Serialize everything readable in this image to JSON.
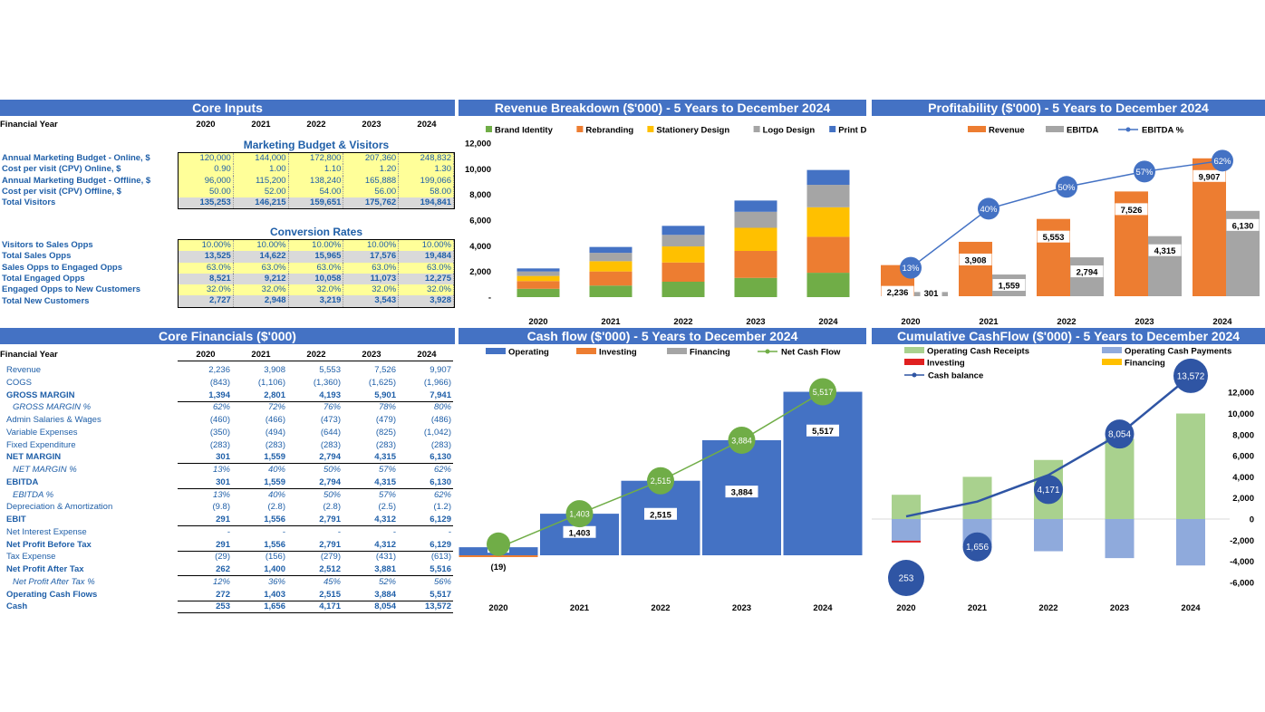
{
  "core_inputs": {
    "title": "Core Inputs",
    "year_label": "Financial Year",
    "years": [
      "2020",
      "2021",
      "2022",
      "2023",
      "2024"
    ],
    "section1_title": "Marketing Budget & Visitors",
    "section1_rows": [
      {
        "label": "Annual Marketing Budget - Online, $",
        "values": [
          "120,000",
          "144,000",
          "172,800",
          "207,360",
          "248,832"
        ],
        "style": "hl"
      },
      {
        "label": "Cost per visit (CPV) Online, $",
        "values": [
          "0.90",
          "1.00",
          "1.10",
          "1.20",
          "1.30"
        ],
        "style": "hl"
      },
      {
        "label": "Annual Marketing Budget - Offline, $",
        "values": [
          "96,000",
          "115,200",
          "138,240",
          "165,888",
          "199,066"
        ],
        "style": "hl"
      },
      {
        "label": "Cost per visit (CPV) Offline, $",
        "values": [
          "50.00",
          "52.00",
          "54.00",
          "56.00",
          "58.00"
        ],
        "style": "hl"
      },
      {
        "label": "Total Visitors",
        "values": [
          "135,253",
          "146,215",
          "159,651",
          "175,762",
          "194,841"
        ],
        "style": "gr"
      }
    ],
    "section2_title": "Conversion Rates",
    "section2_rows": [
      {
        "label": "Visitors to Sales Opps",
        "values": [
          "10.00%",
          "10.00%",
          "10.00%",
          "10.00%",
          "10.00%"
        ],
        "style": "hl"
      },
      {
        "label": "Total Sales Opps",
        "values": [
          "13,525",
          "14,622",
          "15,965",
          "17,576",
          "19,484"
        ],
        "style": "gr"
      },
      {
        "label": "Sales Opps to Engaged Opps",
        "values": [
          "63.0%",
          "63.0%",
          "63.0%",
          "63.0%",
          "63.0%"
        ],
        "style": "hl"
      },
      {
        "label": "Total Engaged Opps",
        "values": [
          "8,521",
          "9,212",
          "10,058",
          "11,073",
          "12,275"
        ],
        "style": "gr"
      },
      {
        "label": "Engaged Opps to New Customers",
        "values": [
          "32.0%",
          "32.0%",
          "32.0%",
          "32.0%",
          "32.0%"
        ],
        "style": "hl"
      },
      {
        "label": "Total New Customers",
        "values": [
          "2,727",
          "2,948",
          "3,219",
          "3,543",
          "3,928"
        ],
        "style": "gr"
      }
    ]
  },
  "core_financials": {
    "title": "Core Financials ($'000)",
    "year_label": "Financial Year",
    "years": [
      "2020",
      "2021",
      "2022",
      "2023",
      "2024"
    ],
    "rows": [
      {
        "label": "Revenue",
        "values": [
          "2,236",
          "3,908",
          "5,553",
          "7,526",
          "9,907"
        ],
        "style": "normal"
      },
      {
        "label": "COGS",
        "values": [
          "(843)",
          "(1,106)",
          "(1,360)",
          "(1,625)",
          "(1,966)"
        ],
        "style": "normal"
      },
      {
        "label": "GROSS MARGIN",
        "values": [
          "1,394",
          "2,801",
          "4,193",
          "5,901",
          "7,941"
        ],
        "style": "bold"
      },
      {
        "label": "GROSS MARGIN %",
        "values": [
          "62%",
          "72%",
          "76%",
          "78%",
          "80%"
        ],
        "style": "italic"
      },
      {
        "label": "Admin Salaries & Wages",
        "values": [
          "(460)",
          "(466)",
          "(473)",
          "(479)",
          "(486)"
        ],
        "style": "normal"
      },
      {
        "label": "Variable Expenses",
        "values": [
          "(350)",
          "(494)",
          "(644)",
          "(825)",
          "(1,042)"
        ],
        "style": "normal"
      },
      {
        "label": "Fixed Expenditure",
        "values": [
          "(283)",
          "(283)",
          "(283)",
          "(283)",
          "(283)"
        ],
        "style": "normal"
      },
      {
        "label": "NET MARGIN",
        "values": [
          "301",
          "1,559",
          "2,794",
          "4,315",
          "6,130"
        ],
        "style": "bold"
      },
      {
        "label": "NET MARGIN %",
        "values": [
          "13%",
          "40%",
          "50%",
          "57%",
          "62%"
        ],
        "style": "italic"
      },
      {
        "label": "EBITDA",
        "values": [
          "301",
          "1,559",
          "2,794",
          "4,315",
          "6,130"
        ],
        "style": "bold"
      },
      {
        "label": "EBITDA %",
        "values": [
          "13%",
          "40%",
          "50%",
          "57%",
          "62%"
        ],
        "style": "italic"
      },
      {
        "label": "Depreciation & Amortization",
        "values": [
          "(9.8)",
          "(2.8)",
          "(2.8)",
          "(2.5)",
          "(1.2)"
        ],
        "style": "normal"
      },
      {
        "label": "EBIT",
        "values": [
          "291",
          "1,556",
          "2,791",
          "4,312",
          "6,129"
        ],
        "style": "bold"
      },
      {
        "label": "Net Interest Expense",
        "values": [
          "-",
          "-",
          "-",
          "-",
          "-"
        ],
        "style": "normal"
      },
      {
        "label": "Net Profit Before Tax",
        "values": [
          "291",
          "1,556",
          "2,791",
          "4,312",
          "6,129"
        ],
        "style": "bold"
      },
      {
        "label": "Tax Expense",
        "values": [
          "(29)",
          "(156)",
          "(279)",
          "(431)",
          "(613)"
        ],
        "style": "normal"
      },
      {
        "label": "Net Profit After Tax",
        "values": [
          "262",
          "1,400",
          "2,512",
          "3,881",
          "5,516"
        ],
        "style": "bold"
      },
      {
        "label": "Net Profit After Tax %",
        "values": [
          "12%",
          "36%",
          "45%",
          "52%",
          "56%"
        ],
        "style": "italic"
      },
      {
        "label": "Operating Cash Flows",
        "values": [
          "272",
          "1,403",
          "2,515",
          "3,884",
          "5,517"
        ],
        "style": "bold"
      },
      {
        "label": "Cash",
        "values": [
          "253",
          "1,656",
          "4,171",
          "8,054",
          "13,572"
        ],
        "style": "bold"
      }
    ]
  },
  "charts": {
    "revenue": {
      "title": "Revenue Breakdown ($'000) - 5 Years to December 2024"
    },
    "profit": {
      "title": "Profitability ($'000) - 5 Years to December 2024"
    },
    "cashflow": {
      "title": "Cash flow ($'000) - 5 Years to December 2024"
    },
    "cumulative": {
      "title": "Cumulative CashFlow ($'000) - 5 Years to December 2024"
    }
  },
  "chart_data": [
    {
      "type": "bar",
      "title": "Revenue Breakdown ($'000) - 5 Years to December 2024",
      "categories": [
        "2020",
        "2021",
        "2022",
        "2023",
        "2024"
      ],
      "stacked": true,
      "ylim": [
        0,
        12000
      ],
      "yticks": [
        "-",
        "2,000",
        "4,000",
        "6,000",
        "8,000",
        "10,000",
        "12,000"
      ],
      "legend": "top",
      "series": [
        {
          "name": "Brand Identity",
          "color": "#70ad47",
          "values": [
            650,
            900,
            1200,
            1500,
            1900
          ]
        },
        {
          "name": "Rebranding",
          "color": "#ed7d31",
          "values": [
            600,
            1100,
            1500,
            2100,
            2800
          ]
        },
        {
          "name": "Stationery Design",
          "color": "#ffc000",
          "values": [
            400,
            800,
            1250,
            1800,
            2300
          ]
        },
        {
          "name": "Logo Design",
          "color": "#a5a5a5",
          "values": [
            350,
            650,
            900,
            1250,
            1750
          ]
        },
        {
          "name": "Print Design",
          "color": "#4472c4",
          "values": [
            236,
            458,
            703,
            876,
            1157
          ]
        }
      ]
    },
    {
      "type": "bar",
      "title": "Profitability ($'000) - 5 Years to December 2024",
      "categories": [
        "2020",
        "2021",
        "2022",
        "2023",
        "2024"
      ],
      "legend": "top",
      "ylim": [
        0,
        11000
      ],
      "series": [
        {
          "name": "Revenue",
          "color": "#ed7d31",
          "values": [
            2236,
            3908,
            5553,
            7526,
            9907
          ],
          "labels": [
            "2,236",
            "3,908",
            "5,553",
            "7,526",
            "9,907"
          ]
        },
        {
          "name": "EBITDA",
          "color": "#a5a5a5",
          "values": [
            301,
            1559,
            2794,
            4315,
            6130
          ],
          "labels": [
            "301",
            "1,559",
            "2,794",
            "4,315",
            "6,130"
          ]
        },
        {
          "name": "EBITDA %",
          "color": "#4472c4",
          "type": "line",
          "values": [
            13,
            40,
            50,
            57,
            62
          ],
          "labels": [
            "13%",
            "40%",
            "50%",
            "57%",
            "62%"
          ]
        }
      ]
    },
    {
      "type": "bar",
      "title": "Cash flow ($'000) - 5 Years to December 2024",
      "categories": [
        "2020",
        "2021",
        "2022",
        "2023",
        "2024"
      ],
      "legend": "top",
      "ylim": [
        -400,
        6400
      ],
      "series": [
        {
          "name": "Operating",
          "color": "#4472c4",
          "values": [
            272,
            1403,
            2515,
            3884,
            5517
          ],
          "labels": [
            "272",
            "1,403",
            "2,515",
            "3,884",
            "5,517"
          ]
        },
        {
          "name": "Investing",
          "color": "#ed7d31",
          "values": [
            -19,
            0,
            0,
            0,
            0
          ],
          "labels": [
            "(19)",
            "-",
            "-",
            "-",
            "-"
          ]
        },
        {
          "name": "Financing",
          "color": "#a5a5a5",
          "values": [
            0,
            0,
            0,
            0,
            0
          ]
        },
        {
          "name": "Net Cash Flow",
          "color": "#70ad47",
          "type": "line",
          "values": [
            253,
            1403,
            2515,
            3884,
            5517
          ],
          "labels": [
            "253",
            "1,403",
            "2,515",
            "3,884",
            "5,517"
          ]
        }
      ]
    },
    {
      "type": "bar",
      "title": "Cumulative CashFlow ($'000) - 5 Years to December 2024",
      "categories": [
        "2020",
        "2021",
        "2022",
        "2023",
        "2024"
      ],
      "legend": "top",
      "ylim": [
        -6000,
        12000
      ],
      "yticks": [
        "-6,000",
        "-4,000",
        "-2,000",
        "0",
        "2,000",
        "4,000",
        "6,000",
        "8,000",
        "10,000",
        "12,000"
      ],
      "series": [
        {
          "name": "Operating Cash Receipts",
          "color": "#a9d18e",
          "values": [
            2300,
            4000,
            5600,
            7600,
            10000
          ]
        },
        {
          "name": "Operating Cash Payments",
          "color": "#8faadc",
          "values": [
            -2050,
            -2500,
            -3050,
            -3700,
            -4400
          ]
        },
        {
          "name": "Investing",
          "color": "#e02020",
          "values": [
            -19,
            0,
            0,
            0,
            0
          ]
        },
        {
          "name": "Financing",
          "color": "#ffc000",
          "values": [
            0,
            0,
            0,
            0,
            0
          ]
        },
        {
          "name": "Cash balance",
          "color": "#2f55a4",
          "type": "line",
          "values": [
            253,
            1656,
            4171,
            8054,
            13572
          ],
          "labels": [
            "253",
            "1,656",
            "4,171",
            "8,054",
            "13,572"
          ]
        }
      ]
    }
  ]
}
